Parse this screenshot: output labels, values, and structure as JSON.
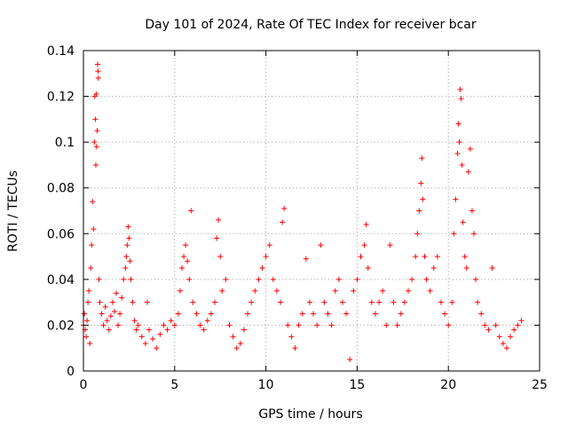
{
  "chart_data": {
    "type": "scatter",
    "title": "Day 101 of 2024, Rate Of TEC Index for receiver bcar",
    "xlabel": "GPS time / hours",
    "ylabel": "ROTI / TECUs",
    "xlim": [
      0,
      25
    ],
    "ylim": [
      0,
      0.14
    ],
    "grid": true,
    "x_ticks": [
      0,
      5,
      10,
      15,
      20,
      25
    ],
    "x_tick_labels": [
      "0",
      "5",
      "10",
      "15",
      "20",
      "25"
    ],
    "y_ticks": [
      0,
      0.02,
      0.04,
      0.06,
      0.08,
      0.1,
      0.12,
      0.14
    ],
    "y_tick_labels": [
      "0",
      "0.02",
      "0.04",
      "0.06",
      "0.08",
      "0.1",
      "0.12",
      "0.14"
    ],
    "marker": "+",
    "color": "#ff0000",
    "series": [
      {
        "name": "ROTI",
        "points": [
          [
            0.0,
            0.02
          ],
          [
            0.05,
            0.025
          ],
          [
            0.1,
            0.018
          ],
          [
            0.15,
            0.015
          ],
          [
            0.2,
            0.022
          ],
          [
            0.25,
            0.03
          ],
          [
            0.3,
            0.035
          ],
          [
            0.35,
            0.012
          ],
          [
            0.4,
            0.045
          ],
          [
            0.45,
            0.055
          ],
          [
            0.5,
            0.074
          ],
          [
            0.55,
            0.062
          ],
          [
            0.6,
            0.1
          ],
          [
            0.62,
            0.12
          ],
          [
            0.65,
            0.11
          ],
          [
            0.68,
            0.09
          ],
          [
            0.7,
            0.121
          ],
          [
            0.72,
            0.098
          ],
          [
            0.75,
            0.105
          ],
          [
            0.78,
            0.134
          ],
          [
            0.8,
            0.131
          ],
          [
            0.82,
            0.128
          ],
          [
            0.85,
            0.04
          ],
          [
            0.9,
            0.03
          ],
          [
            1.0,
            0.025
          ],
          [
            1.1,
            0.02
          ],
          [
            1.2,
            0.028
          ],
          [
            1.3,
            0.022
          ],
          [
            1.4,
            0.018
          ],
          [
            1.5,
            0.024
          ],
          [
            1.6,
            0.03
          ],
          [
            1.7,
            0.026
          ],
          [
            1.8,
            0.034
          ],
          [
            1.9,
            0.02
          ],
          [
            2.0,
            0.025
          ],
          [
            2.1,
            0.032
          ],
          [
            2.2,
            0.04
          ],
          [
            2.3,
            0.045
          ],
          [
            2.35,
            0.05
          ],
          [
            2.4,
            0.055
          ],
          [
            2.45,
            0.063
          ],
          [
            2.5,
            0.058
          ],
          [
            2.55,
            0.048
          ],
          [
            2.6,
            0.04
          ],
          [
            2.7,
            0.03
          ],
          [
            2.8,
            0.022
          ],
          [
            2.9,
            0.018
          ],
          [
            3.0,
            0.02
          ],
          [
            3.2,
            0.015
          ],
          [
            3.4,
            0.012
          ],
          [
            3.5,
            0.03
          ],
          [
            3.6,
            0.018
          ],
          [
            3.8,
            0.014
          ],
          [
            4.0,
            0.01
          ],
          [
            4.2,
            0.016
          ],
          [
            4.4,
            0.02
          ],
          [
            4.6,
            0.018
          ],
          [
            4.8,
            0.022
          ],
          [
            5.0,
            0.02
          ],
          [
            5.2,
            0.025
          ],
          [
            5.3,
            0.035
          ],
          [
            5.4,
            0.045
          ],
          [
            5.5,
            0.05
          ],
          [
            5.6,
            0.055
          ],
          [
            5.7,
            0.048
          ],
          [
            5.8,
            0.04
          ],
          [
            5.9,
            0.07
          ],
          [
            6.0,
            0.03
          ],
          [
            6.2,
            0.025
          ],
          [
            6.4,
            0.02
          ],
          [
            6.6,
            0.018
          ],
          [
            6.8,
            0.022
          ],
          [
            7.0,
            0.025
          ],
          [
            7.2,
            0.03
          ],
          [
            7.3,
            0.058
          ],
          [
            7.4,
            0.066
          ],
          [
            7.5,
            0.05
          ],
          [
            7.6,
            0.035
          ],
          [
            7.8,
            0.04
          ],
          [
            8.0,
            0.02
          ],
          [
            8.2,
            0.015
          ],
          [
            8.4,
            0.01
          ],
          [
            8.6,
            0.012
          ],
          [
            8.8,
            0.018
          ],
          [
            9.0,
            0.025
          ],
          [
            9.2,
            0.03
          ],
          [
            9.4,
            0.035
          ],
          [
            9.6,
            0.04
          ],
          [
            9.8,
            0.045
          ],
          [
            10.0,
            0.05
          ],
          [
            10.2,
            0.055
          ],
          [
            10.4,
            0.04
          ],
          [
            10.6,
            0.035
          ],
          [
            10.8,
            0.03
          ],
          [
            10.9,
            0.065
          ],
          [
            11.0,
            0.071
          ],
          [
            11.2,
            0.02
          ],
          [
            11.4,
            0.015
          ],
          [
            11.6,
            0.01
          ],
          [
            11.8,
            0.02
          ],
          [
            12.0,
            0.025
          ],
          [
            12.2,
            0.049
          ],
          [
            12.4,
            0.03
          ],
          [
            12.6,
            0.025
          ],
          [
            12.8,
            0.02
          ],
          [
            13.0,
            0.055
          ],
          [
            13.2,
            0.03
          ],
          [
            13.4,
            0.025
          ],
          [
            13.6,
            0.02
          ],
          [
            13.8,
            0.035
          ],
          [
            14.0,
            0.04
          ],
          [
            14.2,
            0.03
          ],
          [
            14.4,
            0.025
          ],
          [
            14.6,
            0.005
          ],
          [
            14.8,
            0.035
          ],
          [
            15.0,
            0.04
          ],
          [
            15.2,
            0.05
          ],
          [
            15.4,
            0.055
          ],
          [
            15.5,
            0.064
          ],
          [
            15.6,
            0.045
          ],
          [
            15.8,
            0.03
          ],
          [
            16.0,
            0.025
          ],
          [
            16.2,
            0.03
          ],
          [
            16.4,
            0.035
          ],
          [
            16.6,
            0.02
          ],
          [
            16.8,
            0.055
          ],
          [
            17.0,
            0.03
          ],
          [
            17.2,
            0.02
          ],
          [
            17.4,
            0.025
          ],
          [
            17.6,
            0.03
          ],
          [
            17.8,
            0.035
          ],
          [
            18.0,
            0.04
          ],
          [
            18.2,
            0.05
          ],
          [
            18.3,
            0.06
          ],
          [
            18.4,
            0.07
          ],
          [
            18.5,
            0.082
          ],
          [
            18.55,
            0.093
          ],
          [
            18.6,
            0.075
          ],
          [
            18.7,
            0.05
          ],
          [
            18.8,
            0.04
          ],
          [
            19.0,
            0.035
          ],
          [
            19.2,
            0.045
          ],
          [
            19.4,
            0.05
          ],
          [
            19.6,
            0.03
          ],
          [
            19.8,
            0.025
          ],
          [
            20.0,
            0.02
          ],
          [
            20.2,
            0.03
          ],
          [
            20.3,
            0.06
          ],
          [
            20.4,
            0.075
          ],
          [
            20.5,
            0.095
          ],
          [
            20.55,
            0.108
          ],
          [
            20.6,
            0.1
          ],
          [
            20.65,
            0.123
          ],
          [
            20.7,
            0.119
          ],
          [
            20.75,
            0.09
          ],
          [
            20.8,
            0.065
          ],
          [
            20.9,
            0.05
          ],
          [
            21.0,
            0.045
          ],
          [
            21.1,
            0.087
          ],
          [
            21.2,
            0.097
          ],
          [
            21.3,
            0.07
          ],
          [
            21.4,
            0.06
          ],
          [
            21.5,
            0.04
          ],
          [
            21.6,
            0.03
          ],
          [
            21.8,
            0.025
          ],
          [
            22.0,
            0.02
          ],
          [
            22.2,
            0.018
          ],
          [
            22.4,
            0.045
          ],
          [
            22.6,
            0.02
          ],
          [
            22.8,
            0.015
          ],
          [
            23.0,
            0.012
          ],
          [
            23.2,
            0.01
          ],
          [
            23.4,
            0.015
          ],
          [
            23.6,
            0.018
          ],
          [
            23.8,
            0.02
          ],
          [
            24.0,
            0.022
          ]
        ]
      }
    ]
  }
}
